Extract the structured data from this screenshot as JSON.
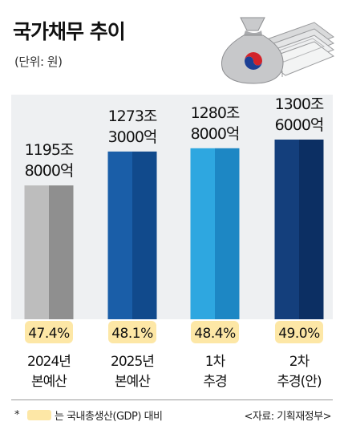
{
  "title": "국가채무 추이",
  "unit_label": "(단위: 원)",
  "footnote": {
    "marker": "*",
    "text": "는 국내총생산(GDP) 대비"
  },
  "source": "<자료: 기획재정부>",
  "colors": {
    "highlight": "#fde7a6",
    "bar_left": [
      "#bdbdbd",
      "#1a5ea8",
      "#2ea7e0",
      "#143f7c"
    ],
    "bar_right": [
      "#8f8f8f",
      "#114a8c",
      "#1d87c4",
      "#0c2f63"
    ]
  },
  "icons": [
    "money-bag-icon",
    "banknote-stack-icon"
  ],
  "chart_data": {
    "type": "bar",
    "categories": [
      [
        "2024년",
        "본예산"
      ],
      [
        "2025년",
        "본예산"
      ],
      [
        "1차",
        "추경"
      ],
      [
        "2차",
        "추경(안)"
      ]
    ],
    "values": [
      11958000,
      12733000,
      12808000,
      13006000
    ],
    "value_labels": [
      [
        "1195조",
        "8000억"
      ],
      [
        "1273조",
        "3000억"
      ],
      [
        "1280조",
        "8000억"
      ],
      [
        "1300조",
        "6000억"
      ]
    ],
    "gdp_ratio_labels": [
      "47.4%",
      "48.1%",
      "48.4%",
      "49.0%"
    ],
    "title": "국가채무 추이",
    "ylabel": "",
    "ylim": [
      0,
      13006000
    ]
  }
}
